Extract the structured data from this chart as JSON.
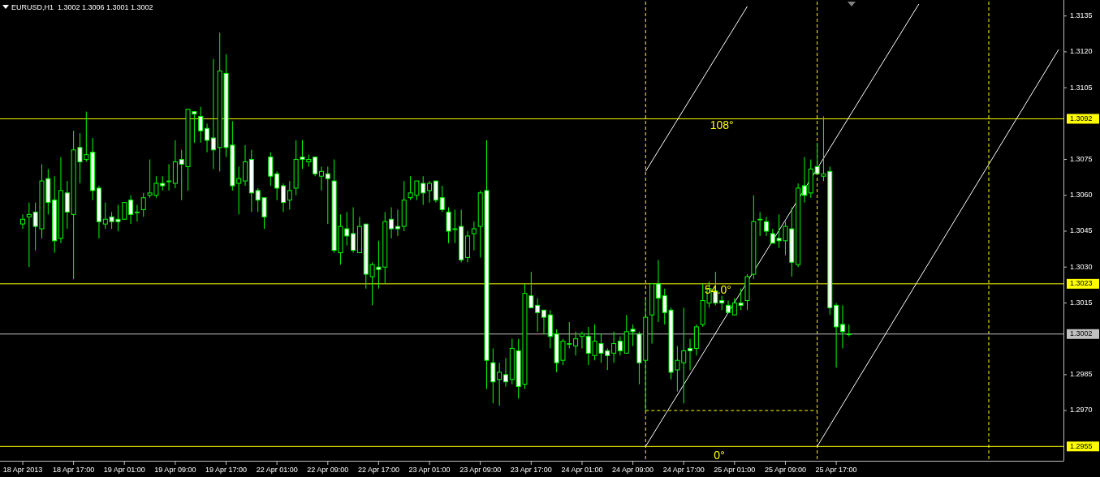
{
  "chart_data": {
    "type": "candlestick",
    "title": "EURUSD,H1  1.3002 1.3006 1.3001 1.3002",
    "color": "#00ff00",
    "categories": [
      "18 Apr 2013",
      null,
      null,
      null,
      null,
      null,
      null,
      null,
      "18 Apr 17:00",
      null,
      null,
      null,
      null,
      null,
      null,
      null,
      "19 Apr 01:00",
      null,
      null,
      null,
      null,
      null,
      null,
      null,
      "19 Apr 09:00",
      null,
      null,
      null,
      null,
      null,
      null,
      null,
      "19 Apr 17:00",
      null,
      null,
      null,
      null,
      null,
      null,
      null,
      "22 Apr 01:00",
      null,
      null,
      null,
      null,
      null,
      null,
      null,
      "22 Apr 09:00",
      null,
      null,
      null,
      null,
      null,
      null,
      null,
      "22 Apr 17:00",
      null,
      null,
      null,
      null,
      null,
      null,
      null,
      "23 Apr 01:00",
      null,
      null,
      null,
      null,
      null,
      null,
      null,
      "23 Apr 09:00",
      null,
      null,
      null,
      null,
      null,
      null,
      null,
      "23 Apr 17:00",
      null,
      null,
      null,
      null,
      null,
      null,
      null,
      "24 Apr 01:00",
      null,
      null,
      null,
      null,
      null,
      null,
      null,
      "24 Apr 09:00",
      null,
      null,
      null,
      null,
      null,
      null,
      null,
      "24 Apr 17:00",
      null,
      null,
      null,
      null,
      null,
      null,
      null,
      "25 Apr 01:00",
      null,
      null,
      null,
      null,
      null,
      null,
      null,
      "25 Apr 09:00",
      null,
      null,
      null,
      null,
      null,
      null,
      null,
      "25 Apr 17:00",
      null,
      null,
      null,
      null,
      null,
      null,
      null,
      null,
      null,
      null,
      null,
      null,
      null,
      null,
      null,
      null,
      null,
      null,
      null,
      null,
      null,
      null,
      null,
      null,
      null,
      null,
      null,
      null,
      null,
      null,
      null,
      null,
      null,
      null,
      null
    ],
    "ohlc": [
      [
        1.3048,
        1.3052,
        1.3046,
        1.305
      ],
      [
        1.3051,
        1.3057,
        1.303,
        1.3052
      ],
      [
        1.3053,
        1.3057,
        1.3037,
        1.3047
      ],
      [
        1.3046,
        1.3073,
        1.3042,
        1.3066
      ],
      [
        1.3067,
        1.3071,
        1.3052,
        1.3057
      ],
      [
        1.3058,
        1.3068,
        1.3036,
        1.3041
      ],
      [
        1.3042,
        1.3076,
        1.304,
        1.3062
      ],
      [
        1.3061,
        1.3066,
        1.3046,
        1.3053
      ],
      [
        1.3052,
        1.3087,
        1.3025,
        1.3079
      ],
      [
        1.308,
        1.3086,
        1.3065,
        1.3074
      ],
      [
        1.3075,
        1.3095,
        1.3074,
        1.3077
      ],
      [
        1.3078,
        1.3084,
        1.3058,
        1.3062
      ],
      [
        1.3063,
        1.3064,
        1.3042,
        1.3049
      ],
      [
        1.3048,
        1.3057,
        1.3046,
        1.305
      ],
      [
        1.3051,
        1.3053,
        1.3046,
        1.3049
      ],
      [
        1.305,
        1.3056,
        1.3045,
        1.3049
      ],
      [
        1.305,
        1.3057,
        1.305,
        1.3057
      ],
      [
        1.3058,
        1.306,
        1.3048,
        1.3052
      ],
      [
        1.3053,
        1.3056,
        1.3049,
        1.3053
      ],
      [
        1.3054,
        1.3061,
        1.3051,
        1.3059
      ],
      [
        1.306,
        1.3075,
        1.3059,
        1.3061
      ],
      [
        1.306,
        1.3068,
        1.3059,
        1.3065
      ],
      [
        1.3065,
        1.3068,
        1.3062,
        1.3064
      ],
      [
        1.3066,
        1.3073,
        1.3062,
        1.3066
      ],
      [
        1.3065,
        1.3083,
        1.3063,
        1.3074
      ],
      [
        1.3075,
        1.3079,
        1.3058,
        1.3073
      ],
      [
        1.3072,
        1.3096,
        1.3062,
        1.3096
      ],
      [
        1.3095,
        1.3095,
        1.3082,
        1.3094
      ],
      [
        1.3093,
        1.3097,
        1.3082,
        1.3087
      ],
      [
        1.3088,
        1.309,
        1.3078,
        1.3083
      ],
      [
        1.3084,
        1.3117,
        1.3071,
        1.3079
      ],
      [
        1.308,
        1.3128,
        1.307,
        1.3112
      ],
      [
        1.3111,
        1.3119,
        1.3076,
        1.308
      ],
      [
        1.3081,
        1.3091,
        1.3062,
        1.3064
      ],
      [
        1.3065,
        1.3072,
        1.3052,
        1.3067
      ],
      [
        1.3066,
        1.3081,
        1.3064,
        1.3074
      ],
      [
        1.3075,
        1.3079,
        1.3053,
        1.3061
      ],
      [
        1.3062,
        1.3063,
        1.3053,
        1.3058
      ],
      [
        1.3059,
        1.3059,
        1.3046,
        1.3051
      ],
      [
        1.3076,
        1.3078,
        1.3064,
        1.3068
      ],
      [
        1.3069,
        1.307,
        1.3058,
        1.3063
      ],
      [
        1.3064,
        1.3065,
        1.3053,
        1.3057
      ],
      [
        1.3058,
        1.3066,
        1.3054,
        1.3062
      ],
      [
        1.3063,
        1.3083,
        1.306,
        1.3075
      ],
      [
        1.3076,
        1.3083,
        1.3071,
        1.3075
      ],
      [
        1.3074,
        1.3077,
        1.3072,
        1.3075
      ],
      [
        1.3076,
        1.3076,
        1.3068,
        1.3069
      ],
      [
        1.3068,
        1.3072,
        1.3062,
        1.307
      ],
      [
        1.3069,
        1.3072,
        1.3048,
        1.3067
      ],
      [
        1.3066,
        1.3075,
        1.3036,
        1.3037
      ],
      [
        1.3036,
        1.3052,
        1.3031,
        1.3047
      ],
      [
        1.3046,
        1.3053,
        1.3039,
        1.3043
      ],
      [
        1.3044,
        1.3055,
        1.3036,
        1.3037
      ],
      [
        1.3036,
        1.3051,
        1.3036,
        1.3047
      ],
      [
        1.3048,
        1.3048,
        1.3021,
        1.3027
      ],
      [
        1.3026,
        1.3032,
        1.3014,
        1.3031
      ],
      [
        1.303,
        1.3041,
        1.3021,
        1.3029
      ],
      [
        1.303,
        1.3053,
        1.3023,
        1.3049
      ],
      [
        1.305,
        1.3055,
        1.3042,
        1.3046
      ],
      [
        1.3047,
        1.3054,
        1.3043,
        1.3046
      ],
      [
        1.3047,
        1.3066,
        1.3045,
        1.3058
      ],
      [
        1.3059,
        1.3068,
        1.3058,
        1.3061
      ],
      [
        1.306,
        1.3066,
        1.3058,
        1.3066
      ],
      [
        1.3065,
        1.3068,
        1.3056,
        1.3061
      ],
      [
        1.3062,
        1.3066,
        1.3057,
        1.3065
      ],
      [
        1.3066,
        1.3066,
        1.3057,
        1.3058
      ],
      [
        1.3059,
        1.3064,
        1.3053,
        1.3054
      ],
      [
        1.3053,
        1.3055,
        1.304,
        1.3045
      ],
      [
        1.3046,
        1.3054,
        1.304,
        1.3046
      ],
      [
        1.3047,
        1.3054,
        1.3032,
        1.3033
      ],
      [
        1.3034,
        1.3045,
        1.3032,
        1.3043
      ],
      [
        1.3044,
        1.3049,
        1.3037,
        1.3046
      ],
      [
        1.3047,
        1.3062,
        1.3034,
        1.3061
      ],
      [
        1.3062,
        1.3083,
        1.2979,
        1.2991
      ],
      [
        1.299,
        1.2996,
        1.2973,
        1.2982
      ],
      [
        1.2983,
        1.299,
        1.2972,
        1.2986
      ],
      [
        1.2985,
        1.2992,
        1.298,
        1.2982
      ],
      [
        1.2983,
        1.3,
        1.2981,
        1.2996
      ],
      [
        1.2995,
        1.3,
        1.2975,
        1.298
      ],
      [
        1.2981,
        1.3023,
        1.2979,
        1.3019
      ],
      [
        1.3018,
        1.3028,
        1.3013,
        1.3013
      ],
      [
        1.3014,
        1.3017,
        1.3003,
        1.3011
      ],
      [
        1.3012,
        1.3012,
        1.3002,
        1.3009
      ],
      [
        1.301,
        1.3012,
        1.2996,
        1.3001
      ],
      [
        1.3002,
        1.3004,
        1.2986,
        1.299
      ],
      [
        1.2991,
        1.3,
        1.2989,
        1.2999
      ],
      [
        1.2998,
        1.3007,
        1.2996,
        1.2998
      ],
      [
        1.2997,
        1.3003,
        1.2993,
        1.3
      ],
      [
        1.3001,
        1.3003,
        1.2996,
        1.3002
      ],
      [
        1.3001,
        1.3005,
        1.2989,
        1.2994
      ],
      [
        1.2993,
        1.3006,
        1.2991,
        1.2999
      ],
      [
        1.2998,
        1.3002,
        1.299,
        1.2994
      ],
      [
        1.2995,
        1.2996,
        1.2987,
        1.2993
      ],
      [
        1.2994,
        1.3003,
        1.299,
        1.2998
      ],
      [
        1.2999,
        1.3001,
        1.2993,
        1.2995
      ],
      [
        1.2994,
        1.301,
        1.2994,
        1.3003
      ],
      [
        1.3004,
        1.3006,
        1.2997,
        1.3003
      ],
      [
        1.3002,
        1.3003,
        1.2981,
        1.299
      ],
      [
        1.2991,
        1.3017,
        1.297,
        1.3009
      ],
      [
        1.301,
        1.3023,
        1.2998,
        1.3023
      ],
      [
        1.3023,
        1.3033,
        1.3007,
        1.3017
      ],
      [
        1.3018,
        1.3021,
        1.3006,
        1.3011
      ],
      [
        1.3012,
        1.3013,
        1.2983,
        1.2986
      ],
      [
        1.2987,
        1.2997,
        1.2978,
        1.2991
      ],
      [
        1.299,
        1.3013,
        1.2973,
        1.2995
      ],
      [
        1.2996,
        1.3,
        1.2987,
        1.2995
      ],
      [
        1.2996,
        1.3006,
        1.2993,
        1.3005
      ],
      [
        1.3006,
        1.3023,
        1.3005,
        1.3016
      ],
      [
        1.3015,
        1.3024,
        1.3013,
        1.3021
      ],
      [
        1.302,
        1.3028,
        1.3014,
        1.3015
      ],
      [
        1.3016,
        1.3018,
        1.3012,
        1.3015
      ],
      [
        1.3014,
        1.3016,
        1.3011,
        1.3011
      ],
      [
        1.301,
        1.3017,
        1.301,
        1.3015
      ],
      [
        1.3015,
        1.3021,
        1.3012,
        1.3014
      ],
      [
        1.3016,
        1.3027,
        1.3012,
        1.3026
      ],
      [
        1.3027,
        1.306,
        1.3025,
        1.3049
      ],
      [
        1.305,
        1.3053,
        1.3043,
        1.305
      ],
      [
        1.3049,
        1.3051,
        1.3043,
        1.3045
      ],
      [
        1.3044,
        1.3046,
        1.304,
        1.304
      ],
      [
        1.3042,
        1.3052,
        1.3038,
        1.3041
      ],
      [
        1.3041,
        1.3049,
        1.3035,
        1.3047
      ],
      [
        1.3046,
        1.3055,
        1.3026,
        1.3032
      ],
      [
        1.3031,
        1.3065,
        1.303,
        1.3063
      ],
      [
        1.3064,
        1.3076,
        1.3057,
        1.306
      ],
      [
        1.3061,
        1.3075,
        1.3059,
        1.3071
      ],
      [
        1.3072,
        1.3082,
        1.3069,
        1.3069
      ],
      [
        1.3068,
        1.3093,
        1.3066,
        1.3069
      ],
      [
        1.307,
        1.3072,
        1.301,
        1.3013
      ],
      [
        1.3014,
        1.3015,
        1.2988,
        1.3005
      ],
      [
        1.3006,
        1.3014,
        1.2996,
        1.3003
      ],
      [
        1.3002,
        1.3006,
        1.3001,
        1.3002
      ],
      null,
      null,
      null,
      null,
      null,
      null,
      null,
      null,
      null,
      null,
      null,
      null,
      null,
      null,
      null,
      null,
      null,
      null,
      null,
      null,
      null,
      null,
      null,
      null,
      null,
      null,
      null,
      null,
      null,
      null,
      null,
      null,
      null
    ],
    "series": [
      {
        "type": "line",
        "color": "#ffffff",
        "values": [
          null,
          null,
          null,
          null,
          null,
          null,
          null,
          null,
          null,
          null,
          null,
          null,
          null,
          null,
          null,
          null,
          null,
          null,
          null,
          null,
          null,
          null,
          null,
          null,
          null,
          null,
          null,
          null,
          null,
          null,
          null,
          null,
          null,
          null,
          null,
          null,
          null,
          null,
          null,
          null,
          null,
          null,
          null,
          null,
          null,
          null,
          null,
          null,
          null,
          null,
          null,
          null,
          null,
          null,
          null,
          null,
          null,
          null,
          null,
          null,
          null,
          null,
          null,
          null,
          null,
          null,
          null,
          null,
          null,
          null,
          null,
          null,
          null,
          null,
          null,
          null,
          null,
          null,
          null,
          null,
          null,
          null,
          null,
          null,
          null,
          null,
          null,
          null,
          null,
          null,
          null,
          null,
          null,
          null,
          null,
          null,
          null,
          null,
          1.2955,
          null,
          null,
          null,
          null,
          null,
          null,
          null,
          null,
          null,
          null,
          null,
          null,
          null,
          null,
          null,
          null,
          null,
          null,
          null,
          null,
          null,
          null,
          null,
          null,
          null,
          null,
          null,
          null,
          null,
          null,
          null,
          null,
          null,
          null,
          null,
          null,
          null,
          null,
          null,
          null,
          null,
          null,
          1.314,
          null,
          null,
          null,
          null,
          null,
          null,
          null,
          null,
          null,
          null,
          null,
          null,
          null,
          null,
          null,
          null,
          null,
          null,
          null,
          null,
          null,
          null
        ]
      },
      {
        "type": "line",
        "color": "#ffffff",
        "values": [
          null,
          null,
          null,
          null,
          null,
          null,
          null,
          null,
          null,
          null,
          null,
          null,
          null,
          null,
          null,
          null,
          null,
          null,
          null,
          null,
          null,
          null,
          null,
          null,
          null,
          null,
          null,
          null,
          null,
          null,
          null,
          null,
          null,
          null,
          null,
          null,
          null,
          null,
          null,
          null,
          null,
          null,
          null,
          null,
          null,
          null,
          null,
          null,
          null,
          null,
          null,
          null,
          null,
          null,
          null,
          null,
          null,
          null,
          null,
          null,
          null,
          null,
          null,
          null,
          null,
          null,
          null,
          null,
          null,
          null,
          null,
          null,
          null,
          null,
          null,
          null,
          null,
          null,
          null,
          null,
          null,
          null,
          null,
          null,
          null,
          null,
          null,
          null,
          null,
          null,
          null,
          null,
          null,
          null,
          null,
          null,
          null,
          null,
          1.307,
          null,
          null,
          null,
          null,
          null,
          null,
          null,
          null,
          null,
          null,
          null,
          null,
          null,
          null,
          null,
          1.3139,
          null,
          null,
          null,
          null,
          null,
          null,
          null,
          null,
          null,
          null,
          null,
          null,
          null,
          null,
          null,
          null,
          null,
          null,
          null,
          null,
          null,
          null,
          null,
          null,
          null,
          null,
          null,
          null,
          null,
          null,
          null,
          null,
          null,
          null,
          null,
          null,
          null,
          null,
          null,
          null,
          null,
          null,
          null,
          null,
          null,
          null,
          null,
          null,
          null
        ]
      },
      {
        "type": "line",
        "color": "#ffffff",
        "values": [
          null,
          null,
          null,
          null,
          null,
          null,
          null,
          null,
          null,
          null,
          null,
          null,
          null,
          null,
          null,
          null,
          null,
          null,
          null,
          null,
          null,
          null,
          null,
          null,
          null,
          null,
          null,
          null,
          null,
          null,
          null,
          null,
          null,
          null,
          null,
          null,
          null,
          null,
          null,
          null,
          null,
          null,
          null,
          null,
          null,
          null,
          null,
          null,
          null,
          null,
          null,
          null,
          null,
          null,
          null,
          null,
          null,
          null,
          null,
          null,
          null,
          null,
          null,
          null,
          null,
          null,
          null,
          null,
          null,
          null,
          null,
          null,
          null,
          null,
          null,
          null,
          null,
          null,
          null,
          null,
          null,
          null,
          null,
          null,
          null,
          null,
          null,
          null,
          null,
          null,
          null,
          null,
          null,
          null,
          null,
          null,
          null,
          null,
          null,
          null,
          null,
          null,
          null,
          null,
          null,
          null,
          null,
          null,
          null,
          null,
          null,
          null,
          null,
          null,
          null,
          null,
          null,
          null,
          null,
          null,
          null,
          null,
          null,
          null,
          null,
          1.2955,
          null,
          null,
          null,
          null,
          null,
          null,
          null,
          null,
          null,
          null,
          null,
          null,
          null,
          null,
          null,
          null,
          null,
          null,
          null,
          null,
          null,
          null,
          null,
          null,
          null,
          null,
          null,
          null,
          null,
          null,
          null,
          null,
          null,
          null,
          null,
          null,
          null,
          1.3121
        ]
      },
      {
        "type": "line",
        "color": "#ffff00",
        "line_style": "dashed",
        "values": [
          null,
          null,
          null,
          null,
          null,
          null,
          null,
          null,
          null,
          null,
          null,
          null,
          null,
          null,
          null,
          null,
          null,
          null,
          null,
          null,
          null,
          null,
          null,
          null,
          null,
          null,
          null,
          null,
          null,
          null,
          null,
          null,
          null,
          null,
          null,
          null,
          null,
          null,
          null,
          null,
          null,
          null,
          null,
          null,
          null,
          null,
          null,
          null,
          null,
          null,
          null,
          null,
          null,
          null,
          null,
          null,
          null,
          null,
          null,
          null,
          null,
          null,
          null,
          null,
          null,
          null,
          null,
          null,
          null,
          null,
          null,
          null,
          null,
          null,
          null,
          null,
          null,
          null,
          null,
          null,
          null,
          null,
          null,
          null,
          null,
          null,
          null,
          null,
          null,
          null,
          null,
          null,
          null,
          null,
          null,
          null,
          null,
          null,
          1.297,
          null,
          null,
          null,
          null,
          null,
          null,
          null,
          null,
          null,
          null,
          null,
          null,
          null,
          null,
          null,
          null,
          null,
          null,
          null,
          null,
          null,
          null,
          null,
          null,
          null,
          null,
          1.297,
          null,
          null,
          null,
          null,
          null,
          null,
          null,
          null,
          null,
          null,
          null,
          null,
          null,
          null,
          null,
          null,
          null,
          null,
          null,
          null,
          null,
          null,
          null,
          null,
          null,
          null,
          null,
          null,
          null,
          null,
          null,
          null,
          null,
          null,
          null,
          null,
          null,
          null
        ]
      }
    ],
    "ylim": [
      1.2949,
      1.3141
    ],
    "yticks": [
      {
        "value": 1.297,
        "label": "1.2970"
      },
      {
        "value": 1.2985,
        "label": "1.2985"
      },
      {
        "value": 1.3015,
        "label": "1.3015"
      },
      {
        "value": 1.303,
        "label": "1.3030"
      },
      {
        "value": 1.3045,
        "label": "1.3045"
      },
      {
        "value": 1.306,
        "label": "1.3060"
      },
      {
        "value": 1.3075,
        "label": "1.3075"
      },
      {
        "value": 1.3105,
        "label": "1.3105"
      },
      {
        "value": 1.312,
        "label": "1.3120"
      },
      {
        "value": 1.3135,
        "label": "1.3135"
      }
    ],
    "ref_lines": [
      {
        "axis": "y",
        "value": 1.3092,
        "label": "1.3092",
        "color": "#ffff00"
      },
      {
        "axis": "y",
        "value": 1.3023,
        "label": "1.3023",
        "color": "#ffff00"
      },
      {
        "axis": "y",
        "value": 1.3002,
        "label": "1.3002",
        "color": "#c0c0c0"
      },
      {
        "axis": "y",
        "value": 1.2955,
        "label": "1.2955",
        "color": "#ffff00"
      }
    ],
    "annotations": [
      "108°",
      "54.0°",
      "0°"
    ]
  }
}
